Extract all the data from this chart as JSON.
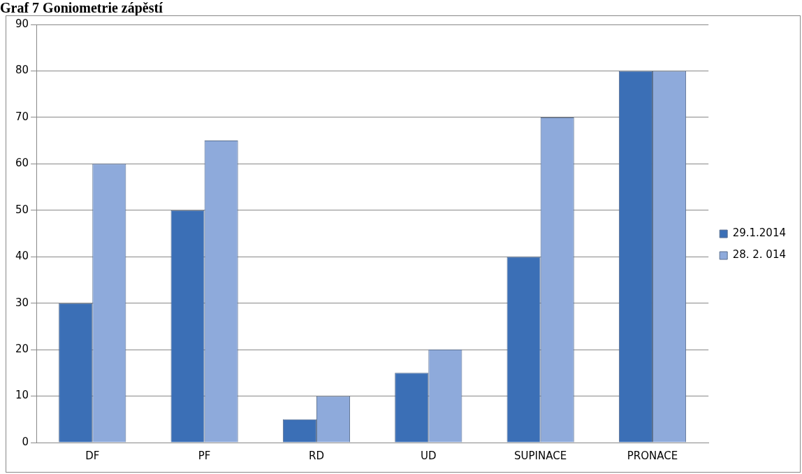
{
  "chart_data": {
    "type": "bar",
    "title": "Graf 7 Goniometrie zápěstí",
    "categories": [
      "DF",
      "PF",
      "RD",
      "UD",
      "SUPINACE",
      "PRONACE"
    ],
    "series": [
      {
        "name": "29.1.2014",
        "color": "#3b6fb6",
        "values": [
          30,
          50,
          5,
          15,
          40,
          80
        ]
      },
      {
        "name": "28. 2. 014",
        "color": "#8eaadb",
        "values": [
          60,
          65,
          10,
          20,
          70,
          80
        ]
      }
    ],
    "ylim": [
      0,
      90
    ],
    "yticks": [
      0,
      10,
      20,
      30,
      40,
      50,
      60,
      70,
      80,
      90
    ],
    "grid": "y",
    "legend": "right"
  }
}
